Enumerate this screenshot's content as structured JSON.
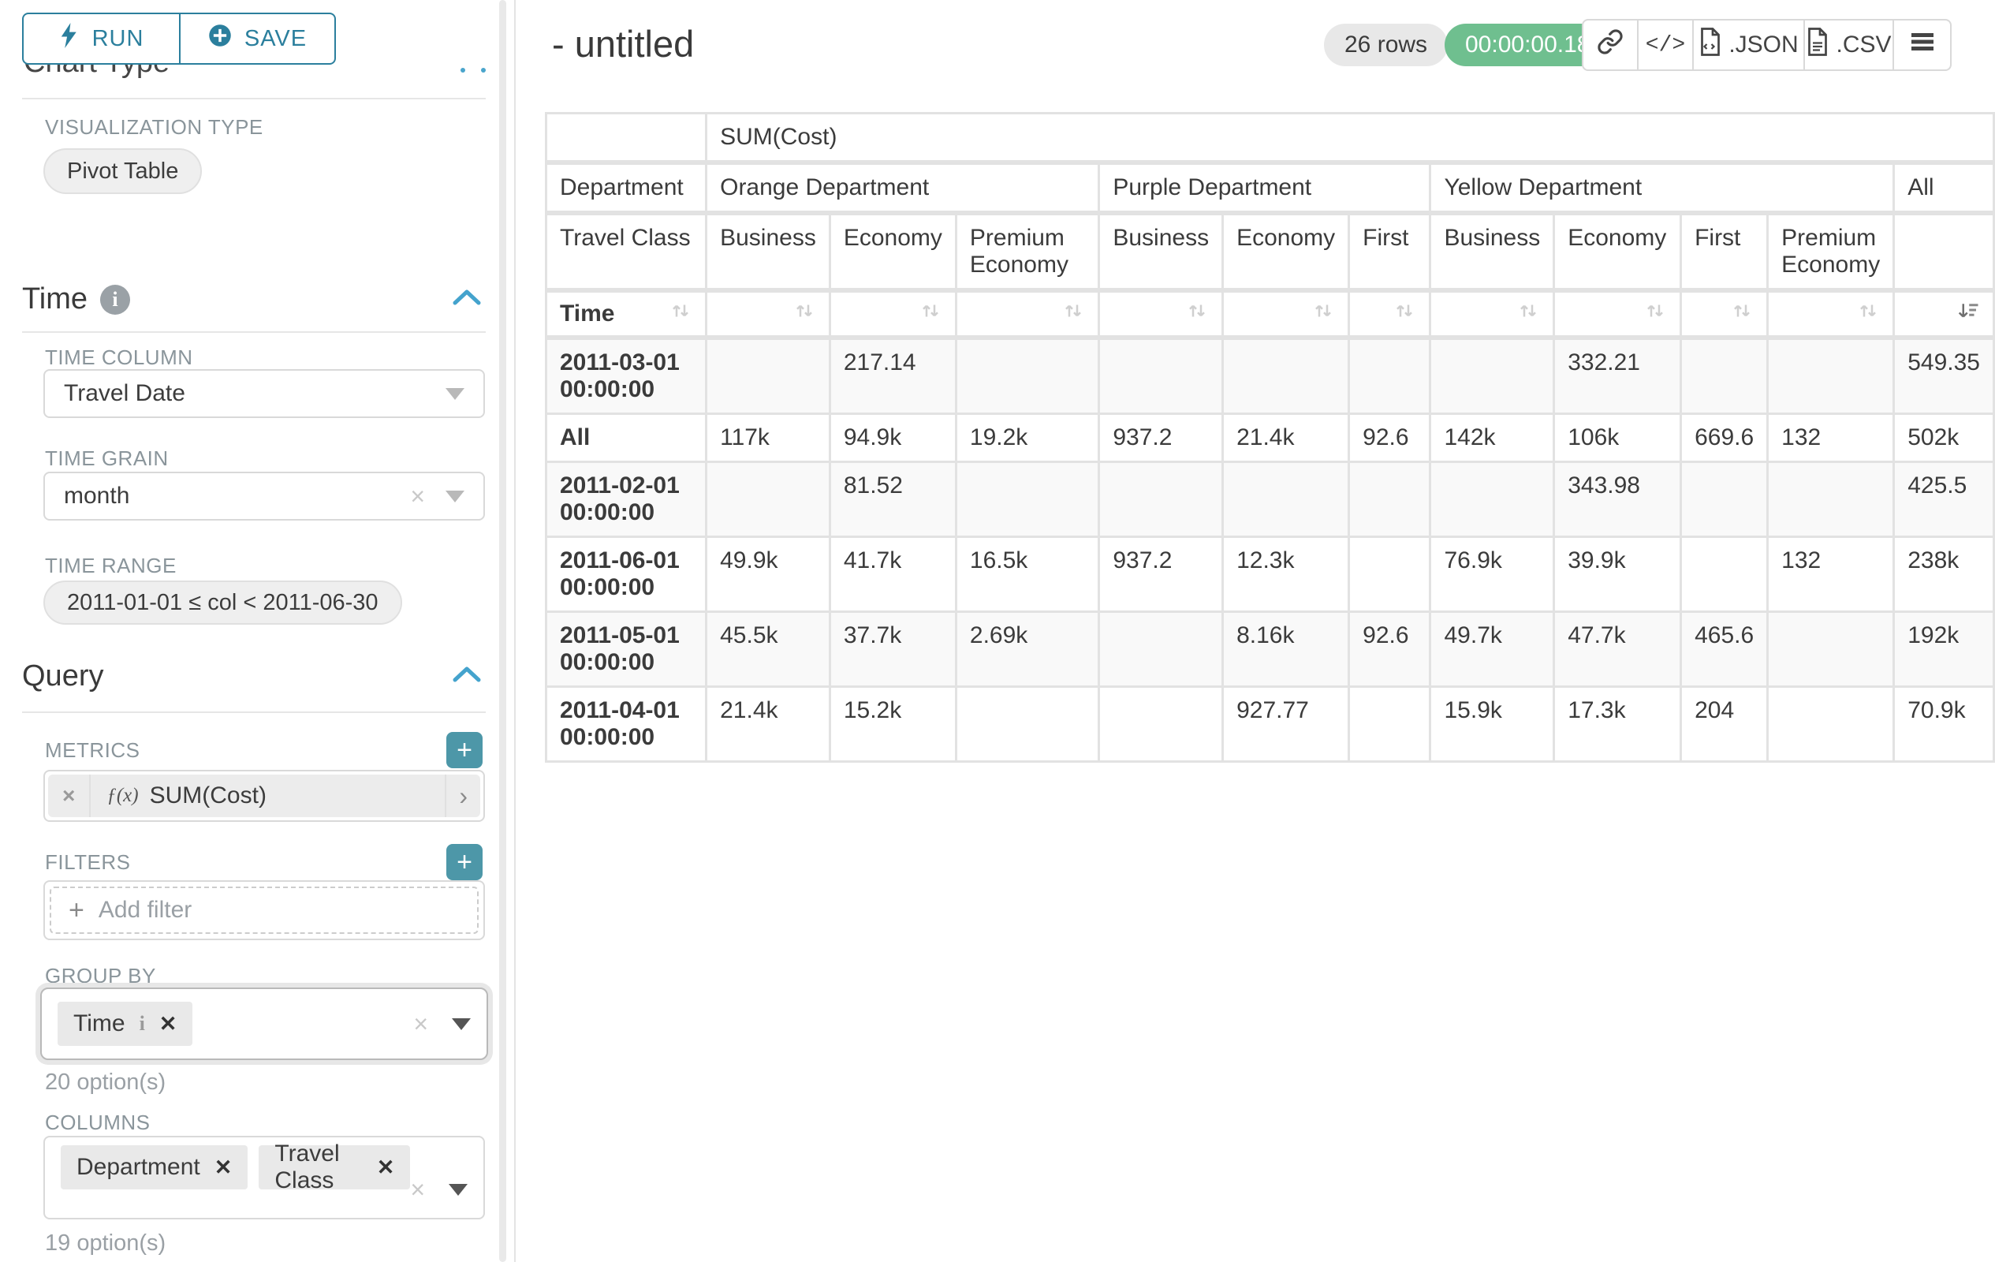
{
  "toolbar": {
    "run_label": "RUN",
    "save_label": "SAVE"
  },
  "panel": {
    "chart_type_heading": "Chart Type",
    "viz_type_label": "VISUALIZATION TYPE",
    "viz_type_value": "Pivot Table",
    "time": {
      "title": "Time",
      "time_column_label": "TIME COLUMN",
      "time_column_value": "Travel Date",
      "time_grain_label": "TIME GRAIN",
      "time_grain_value": "month",
      "time_range_label": "TIME RANGE",
      "time_range_value": "2011-01-01 ≤ col < 2011-06-30"
    },
    "query": {
      "title": "Query",
      "metrics_label": "METRICS",
      "metric_fx": "ƒ(x)",
      "metric_value": "SUM(Cost)",
      "filters_label": "FILTERS",
      "add_filter_label": "Add filter",
      "group_by_label": "GROUP BY",
      "group_by_tags": [
        "Time"
      ],
      "group_by_options": "20 option(s)",
      "columns_label": "COLUMNS",
      "columns_tags": [
        "Department",
        "Travel Class"
      ],
      "columns_options": "19 option(s)"
    }
  },
  "header": {
    "title": "- untitled",
    "row_count": "26 rows",
    "timer": "00:00:00.18",
    "export_json_label": ".JSON",
    "export_csv_label": ".CSV"
  },
  "pivot": {
    "metric_header": "SUM(Cost)",
    "department_label": "Department",
    "travel_class_label": "Travel Class",
    "time_label": "Time",
    "col_groups": [
      {
        "name": "Orange Department",
        "classes": [
          "Business",
          "Economy",
          "Premium Economy"
        ]
      },
      {
        "name": "Purple Department",
        "classes": [
          "Business",
          "Economy",
          "First"
        ]
      },
      {
        "name": "Yellow Department",
        "classes": [
          "Business",
          "Economy",
          "First",
          "Premium Economy"
        ]
      },
      {
        "name": "All",
        "classes": [
          ""
        ]
      }
    ],
    "rows": [
      {
        "label": "2011-03-01 00:00:00",
        "values": [
          "",
          "217.14",
          "",
          "",
          "",
          "",
          "",
          "332.21",
          "",
          "",
          "549.35"
        ]
      },
      {
        "label": "All",
        "values": [
          "117k",
          "94.9k",
          "19.2k",
          "937.2",
          "21.4k",
          "92.6",
          "142k",
          "106k",
          "669.6",
          "132",
          "502k"
        ]
      },
      {
        "label": "2011-02-01 00:00:00",
        "values": [
          "",
          "81.52",
          "",
          "",
          "",
          "",
          "",
          "343.98",
          "",
          "",
          "425.5"
        ]
      },
      {
        "label": "2011-06-01 00:00:00",
        "values": [
          "49.9k",
          "41.7k",
          "16.5k",
          "937.2",
          "12.3k",
          "",
          "76.9k",
          "39.9k",
          "",
          "132",
          "238k"
        ]
      },
      {
        "label": "2011-05-01 00:00:00",
        "values": [
          "45.5k",
          "37.7k",
          "2.69k",
          "",
          "8.16k",
          "92.6",
          "49.7k",
          "47.7k",
          "465.6",
          "",
          "192k"
        ]
      },
      {
        "label": "2011-04-01 00:00:00",
        "values": [
          "21.4k",
          "15.2k",
          "",
          "",
          "927.77",
          "",
          "15.9k",
          "17.3k",
          "204",
          "",
          "70.9k"
        ]
      }
    ]
  },
  "colors": {
    "teal": "#2b7f9d",
    "accent_teal": "#4d97a8",
    "timer_green": "#6fbf8f",
    "chevron_blue": "#44a3cd"
  }
}
